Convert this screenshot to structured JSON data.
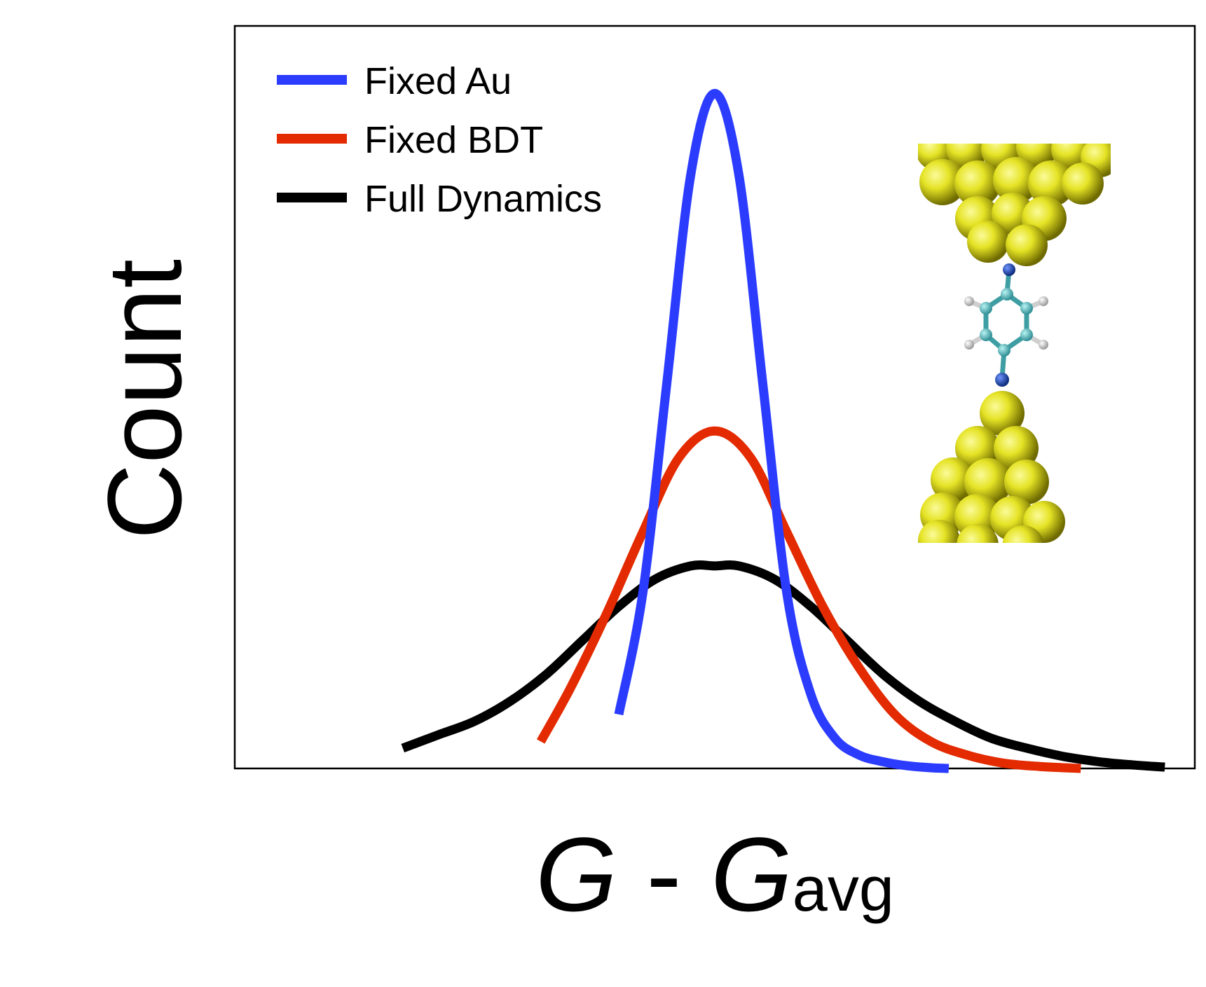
{
  "chart_data": {
    "type": "line",
    "title": "",
    "xlabel": "G - Gavg",
    "xlabel_parts": {
      "var": "G",
      "sep": " - ",
      "var2": "G",
      "sub": "avg"
    },
    "ylabel": "Count",
    "xlim": [
      -4.0,
      4.0
    ],
    "ylim": [
      0,
      1.1
    ],
    "grid": false,
    "ticks_shown": false,
    "legend_placement": "top-left",
    "inset": "Au–BDT–Au junction molecular structure (gold clusters, benzene ring)",
    "series": [
      {
        "name": "Fixed Au",
        "color": "#2b3cff",
        "x": [
          -0.8,
          -0.6,
          -0.4,
          -0.2,
          0.0,
          0.2,
          0.4,
          0.6,
          0.8,
          1.0,
          1.2,
          1.4,
          1.6,
          1.8,
          1.95
        ],
        "y": [
          0.08,
          0.26,
          0.57,
          0.88,
          1.0,
          0.88,
          0.57,
          0.26,
          0.11,
          0.045,
          0.02,
          0.01,
          0.004,
          0.001,
          0.0
        ]
      },
      {
        "name": "Fixed BDT",
        "color": "#e32a00",
        "x": [
          -1.45,
          -1.2,
          -0.9,
          -0.6,
          -0.3,
          0.0,
          0.3,
          0.6,
          0.9,
          1.2,
          1.5,
          1.8,
          2.1,
          2.4,
          2.7,
          3.05
        ],
        "y": [
          0.04,
          0.12,
          0.23,
          0.35,
          0.46,
          0.5,
          0.46,
          0.35,
          0.24,
          0.15,
          0.08,
          0.04,
          0.02,
          0.008,
          0.003,
          0.0
        ]
      },
      {
        "name": "Full Dynamics",
        "color": "#000000",
        "x": [
          -2.6,
          -2.3,
          -2.0,
          -1.7,
          -1.4,
          -1.1,
          -0.8,
          -0.5,
          -0.2,
          0.0,
          0.2,
          0.5,
          0.8,
          1.1,
          1.4,
          1.7,
          2.0,
          2.3,
          2.6,
          2.9,
          3.2,
          3.5,
          3.75
        ],
        "y": [
          0.03,
          0.05,
          0.07,
          0.1,
          0.14,
          0.19,
          0.24,
          0.28,
          0.3,
          0.3,
          0.3,
          0.28,
          0.24,
          0.19,
          0.14,
          0.1,
          0.07,
          0.045,
          0.03,
          0.018,
          0.01,
          0.005,
          0.002
        ]
      }
    ]
  }
}
